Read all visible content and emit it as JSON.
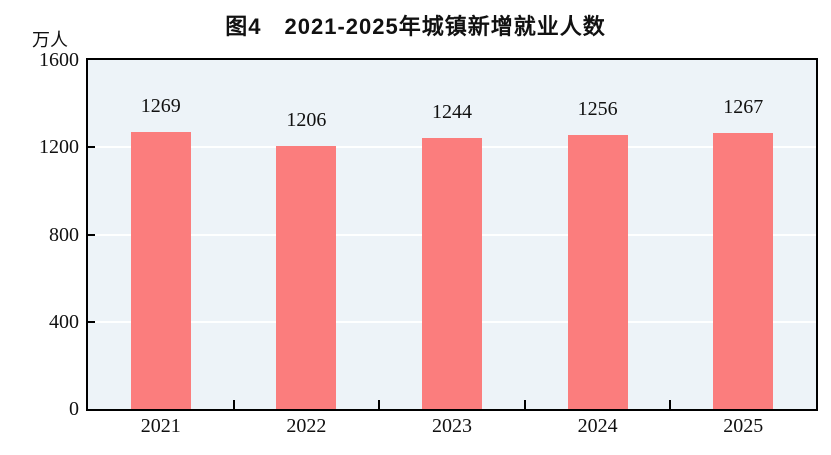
{
  "figure": {
    "title": "图4　2021-2025年城镇新增就业人数",
    "unit_label": "万人"
  },
  "chart_data": {
    "type": "bar",
    "title": "图4　2021-2025年城镇新增就业人数",
    "ylabel": "万人",
    "xlabel": "",
    "categories": [
      "2021",
      "2022",
      "2023",
      "2024",
      "2025"
    ],
    "values": [
      1269,
      1206,
      1244,
      1256,
      1267
    ],
    "data_labels_shown": true,
    "ylim": [
      0,
      1600
    ],
    "yticks": [
      0,
      400,
      800,
      1200,
      1600
    ],
    "grid": "horizontal-white-gridlines",
    "legend": "none",
    "colors": {
      "bar_fill": "#FB7D7D",
      "plot_background": "#EDF3F8",
      "gridline": "#FFFFFF",
      "axis": "#000000",
      "text": "#111111",
      "page_background": "#FFFFFF"
    }
  }
}
